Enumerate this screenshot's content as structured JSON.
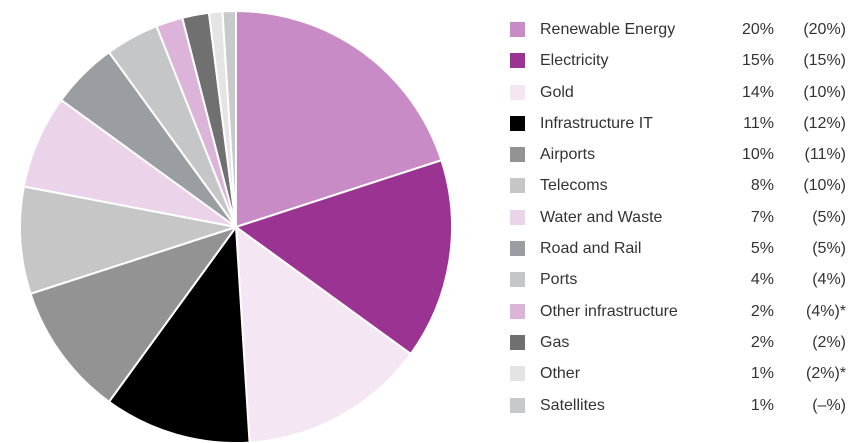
{
  "chart_data": {
    "type": "pie",
    "slices": [
      {
        "label": "Renewable Energy",
        "value": 20,
        "value_text": "20%",
        "prior_text": "(20%)",
        "color": "#c98bc5"
      },
      {
        "label": "Electricity",
        "value": 15,
        "value_text": "15%",
        "prior_text": "(15%)",
        "color": "#9b3393"
      },
      {
        "label": "Gold",
        "value": 14,
        "value_text": "14%",
        "prior_text": "(10%)",
        "color": "#f4e6f3"
      },
      {
        "label": "Infrastructure IT",
        "value": 11,
        "value_text": "11%",
        "prior_text": "(12%)",
        "color": "#000000"
      },
      {
        "label": "Airports",
        "value": 10,
        "value_text": "10%",
        "prior_text": "(11%)",
        "color": "#939393"
      },
      {
        "label": "Telecoms",
        "value": 8,
        "value_text": "8%",
        "prior_text": "(10%)",
        "color": "#c6c6c6"
      },
      {
        "label": "Water and Waste",
        "value": 7,
        "value_text": "7%",
        "prior_text": "(5%)",
        "color": "#ebd3ea"
      },
      {
        "label": "Road and Rail",
        "value": 5,
        "value_text": "5%",
        "prior_text": "(5%)",
        "color": "#9a9ea3"
      },
      {
        "label": "Ports",
        "value": 4,
        "value_text": "4%",
        "prior_text": "(4%)",
        "color": "#c4c6c8"
      },
      {
        "label": "Other infrastructure",
        "value": 2,
        "value_text": "2%",
        "prior_text": "(4%)*",
        "color": "#ddb4d9"
      },
      {
        "label": "Gas",
        "value": 2,
        "value_text": "2%",
        "prior_text": "(2%)",
        "color": "#707070"
      },
      {
        "label": "Other",
        "value": 1,
        "value_text": "1%",
        "prior_text": "(2%)*",
        "color": "#e4e4e4"
      },
      {
        "label": "Satellites",
        "value": 1,
        "value_text": "1%",
        "prior_text": "(–%)",
        "color": "#c8c9cb"
      }
    ],
    "start_angle_deg": 0,
    "direction": "clockwise"
  }
}
